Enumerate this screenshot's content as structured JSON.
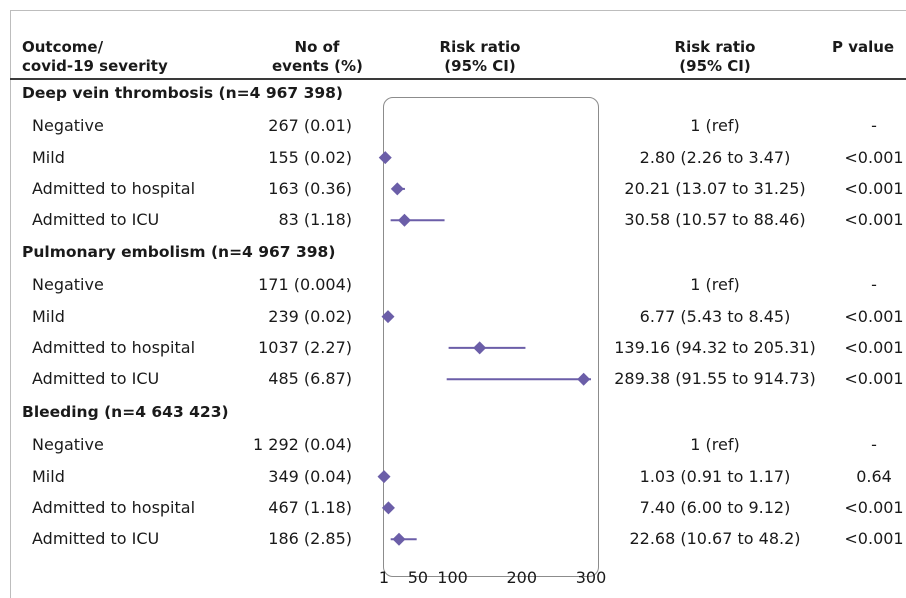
{
  "headers": {
    "outcome_line1": "Outcome/",
    "outcome_line2": "covid-19 severity",
    "events_line1": "No of",
    "events_line2": "events (%)",
    "plot_line1": "Risk ratio",
    "plot_line2": "(95% CI)",
    "rr_line1": "Risk ratio",
    "rr_line2": "(95% CI)",
    "pvalue": "P value"
  },
  "groups": [
    {
      "title": "Deep vein thrombosis (n=4 967 398)",
      "rows": [
        {
          "label": "Negative",
          "events": "267 (0.01)",
          "rr_text": "1 (ref)",
          "p": "-"
        },
        {
          "label": "Mild",
          "events": "155 (0.02)",
          "rr_text": "2.80 (2.26 to 3.47)",
          "p": "<0.001"
        },
        {
          "label": "Admitted to hospital",
          "events": "163 (0.36)",
          "rr_text": "20.21 (13.07 to 31.25)",
          "p": "<0.001"
        },
        {
          "label": "Admitted to ICU",
          "events": "83 (1.18)",
          "rr_text": "30.58 (10.57 to 88.46)",
          "p": "<0.001"
        }
      ]
    },
    {
      "title": "Pulmonary embolism (n=4 967 398)",
      "rows": [
        {
          "label": "Negative",
          "events": "171 (0.004)",
          "rr_text": "1 (ref)",
          "p": "-"
        },
        {
          "label": "Mild",
          "events": "239 (0.02)",
          "rr_text": "6.77 (5.43 to 8.45)",
          "p": "<0.001"
        },
        {
          "label": "Admitted to hospital",
          "events": "1037 (2.27)",
          "rr_text": "139.16 (94.32 to 205.31)",
          "p": "<0.001"
        },
        {
          "label": "Admitted to ICU",
          "events": "485 (6.87)",
          "rr_text": "289.38 (91.55 to 914.73)",
          "p": "<0.001"
        }
      ]
    },
    {
      "title": "Bleeding (n=4 643 423)",
      "rows": [
        {
          "label": "Negative",
          "events": "1 292 (0.04)",
          "rr_text": "1 (ref)",
          "p": "-"
        },
        {
          "label": "Mild",
          "events": "349 (0.04)",
          "rr_text": "1.03 (0.91 to 1.17)",
          "p": "0.64"
        },
        {
          "label": "Admitted to hospital",
          "events": "467 (1.18)",
          "rr_text": "7.40 (6.00 to 9.12)",
          "p": "<0.001"
        },
        {
          "label": "Admitted to ICU",
          "events": "186 (2.85)",
          "rr_text": "22.68 (10.67 to 48.2)",
          "p": "<0.001"
        }
      ]
    }
  ],
  "chart_data": {
    "type": "forest",
    "x_ticks": [
      "1",
      "50",
      "100",
      "200",
      "300"
    ],
    "x_tick_values": [
      1,
      50,
      100,
      200,
      300
    ],
    "xlim": [
      1,
      300
    ],
    "marker_color": "#6b5ea8",
    "series": [
      {
        "group": "Deep vein thrombosis",
        "category": "Mild",
        "estimate": 2.8,
        "lower": 2.26,
        "upper": 3.47
      },
      {
        "group": "Deep vein thrombosis",
        "category": "Admitted to hospital",
        "estimate": 20.21,
        "lower": 13.07,
        "upper": 31.25
      },
      {
        "group": "Deep vein thrombosis",
        "category": "Admitted to ICU",
        "estimate": 30.58,
        "lower": 10.57,
        "upper": 88.46
      },
      {
        "group": "Pulmonary embolism",
        "category": "Mild",
        "estimate": 6.77,
        "lower": 5.43,
        "upper": 8.45
      },
      {
        "group": "Pulmonary embolism",
        "category": "Admitted to hospital",
        "estimate": 139.16,
        "lower": 94.32,
        "upper": 205.31
      },
      {
        "group": "Pulmonary embolism",
        "category": "Admitted to ICU",
        "estimate": 289.38,
        "lower": 91.55,
        "upper": 914.73
      },
      {
        "group": "Bleeding",
        "category": "Mild",
        "estimate": 1.03,
        "lower": 0.91,
        "upper": 1.17
      },
      {
        "group": "Bleeding",
        "category": "Admitted to hospital",
        "estimate": 7.4,
        "lower": 6.0,
        "upper": 9.12
      },
      {
        "group": "Bleeding",
        "category": "Admitted to ICU",
        "estimate": 22.68,
        "lower": 10.67,
        "upper": 48.2
      }
    ]
  }
}
